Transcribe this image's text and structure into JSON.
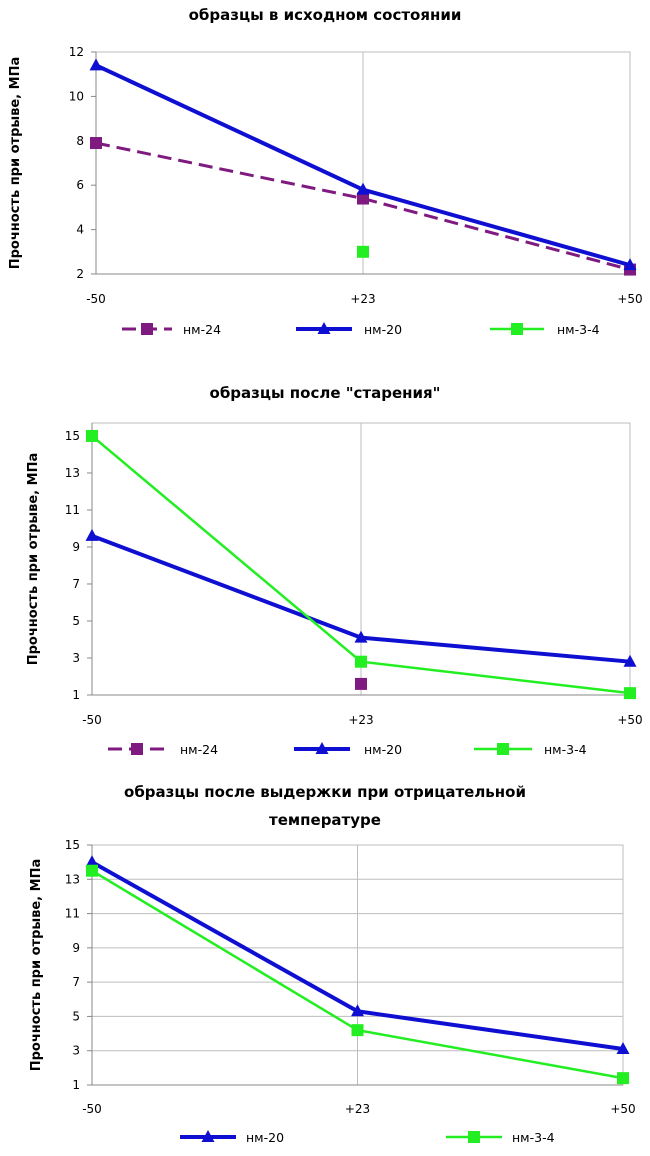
{
  "colors": {
    "nm24": "#7f1a80",
    "nm20": "#0f0fd2",
    "nm34": "#22ee22",
    "grid": "#bdbdbd",
    "axis": "#888888"
  },
  "chart_data": [
    {
      "type": "line",
      "title": [
        "образцы в исходном состоянии"
      ],
      "ylabel": "Прочность при отрыве, МПа",
      "xlabel": "",
      "categories": [
        "-50",
        "+23",
        "+50"
      ],
      "yticks": [
        2,
        4,
        6,
        8,
        10,
        12
      ],
      "ylim": [
        2,
        12
      ],
      "grid": "vertical",
      "series": [
        {
          "name": "нм-24",
          "values": [
            7.9,
            5.4,
            2.2
          ],
          "color": "#7f1a80",
          "marker": "square",
          "dash": "dashed"
        },
        {
          "name": "нм-20",
          "values": [
            11.4,
            5.8,
            2.4
          ],
          "color": "#0f0fd2",
          "marker": "triangle",
          "dash": "solid"
        },
        {
          "name": "нм-3-4",
          "values": [
            null,
            3.0,
            null
          ],
          "color": "#22ee22",
          "marker": "square",
          "dash": "solid"
        }
      ]
    },
    {
      "type": "line",
      "title": [
        "образцы после \"старения\""
      ],
      "ylabel": "Прочность при отрыве, МПа",
      "xlabel": "",
      "categories": [
        "-50",
        "+23",
        "+50"
      ],
      "yticks": [
        1,
        3,
        5,
        7,
        9,
        11,
        13,
        15
      ],
      "ylim": [
        1,
        15.7
      ],
      "grid": "vertical",
      "series": [
        {
          "name": "нм-24",
          "values": [
            null,
            1.6,
            null
          ],
          "color": "#7f1a80",
          "marker": "square",
          "dash": "dashed"
        },
        {
          "name": "нм-20",
          "values": [
            9.6,
            4.1,
            2.8
          ],
          "color": "#0f0fd2",
          "marker": "triangle",
          "dash": "solid"
        },
        {
          "name": "нм-3-4",
          "values": [
            15.0,
            2.8,
            1.1
          ],
          "color": "#22ee22",
          "marker": "square",
          "dash": "solid"
        }
      ]
    },
    {
      "type": "line",
      "title": [
        "образцы после выдержки при отрицательной",
        "температуре"
      ],
      "ylabel": "Прочность при отрыве, МПа",
      "xlabel": "",
      "categories": [
        "-50",
        "+23",
        "+50"
      ],
      "yticks": [
        1,
        3,
        5,
        7,
        9,
        11,
        13,
        15
      ],
      "ylim": [
        1,
        15
      ],
      "grid": "horizontal",
      "series": [
        {
          "name": "нм-20",
          "values": [
            14.0,
            5.3,
            3.1
          ],
          "color": "#0f0fd2",
          "marker": "triangle",
          "dash": "solid"
        },
        {
          "name": "нм-3-4",
          "values": [
            13.5,
            4.2,
            1.4
          ],
          "color": "#22ee22",
          "marker": "square",
          "dash": "solid"
        }
      ]
    }
  ]
}
